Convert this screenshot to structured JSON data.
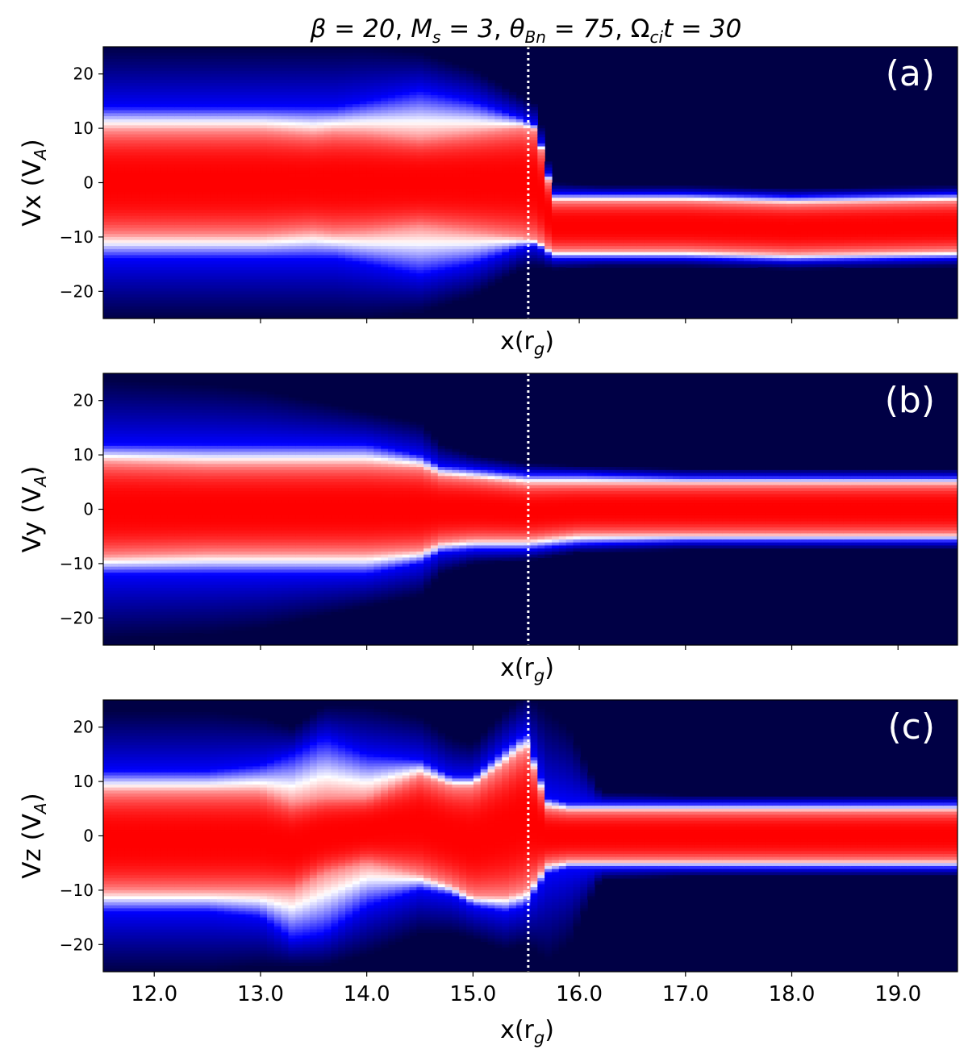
{
  "title": {
    "beta": "β = 20",
    "mach": "M",
    "mach_sub": "s",
    "mach_val": " = 3",
    "theta": "θ",
    "theta_sub": "Bn",
    "theta_val": " = 75",
    "omega": "Ω",
    "omega_sub": "ci",
    "omega_val": "t = 30",
    "sep": ", "
  },
  "xlabel_main": "x(r",
  "xlabel_sub": "g",
  "xlabel_close": ")",
  "colors": {
    "background": "#000045",
    "core": "#ff0000",
    "mid": "#ffffff",
    "wing": "#0000ff",
    "shock_line": "#ffffff"
  },
  "chart_data": [
    {
      "type": "heatmap",
      "panel_label": "(a)",
      "ylabel_main": "Vx (V",
      "ylabel_sub": "A",
      "ylabel_close": ")",
      "xlabel": "x(r_g)",
      "xlim": [
        11.52,
        19.56
      ],
      "ylim": [
        -25,
        25
      ],
      "yticks": [
        20,
        10,
        0,
        -10,
        -20
      ],
      "ytick_labels": [
        "20",
        "10",
        "0",
        "−10",
        "−20"
      ],
      "xticks": [
        12.0,
        13.0,
        14.0,
        15.0,
        16.0,
        17.0,
        18.0,
        19.0
      ],
      "xtick_labels_shown": false,
      "shock_x": 15.52,
      "profile": {
        "x": [
          11.52,
          12.5,
          13.0,
          13.5,
          13.7,
          14.0,
          14.5,
          15.0,
          15.45,
          15.6,
          15.75,
          16.2,
          17.0,
          18.0,
          19.56
        ],
        "center": [
          0,
          0,
          0,
          0,
          0,
          0,
          0,
          0,
          0,
          -0.5,
          -8,
          -8,
          -8,
          -8.5,
          -8
        ],
        "half_core": [
          9.5,
          9.5,
          9.5,
          8.8,
          9.2,
          9.0,
          8.0,
          9.0,
          10.0,
          10.0,
          4.5,
          4.5,
          4.5,
          4.5,
          4.5
        ],
        "half_mid": [
          14,
          14,
          14,
          14,
          14,
          15,
          17,
          15,
          12,
          11,
          6,
          6,
          6,
          6,
          6
        ],
        "half_wing": [
          25,
          25,
          25,
          25,
          25,
          25,
          24,
          21,
          16,
          15,
          8,
          7.5,
          7.5,
          7.5,
          7.5
        ]
      }
    },
    {
      "type": "heatmap",
      "panel_label": "(b)",
      "ylabel_main": "Vy (V",
      "ylabel_sub": "A",
      "ylabel_close": ")",
      "xlabel": "x(r_g)",
      "xlim": [
        11.52,
        19.56
      ],
      "ylim": [
        -25,
        25
      ],
      "yticks": [
        20,
        10,
        0,
        -10,
        -20
      ],
      "ytick_labels": [
        "20",
        "10",
        "0",
        "−10",
        "−20"
      ],
      "xticks": [
        12.0,
        13.0,
        14.0,
        15.0,
        16.0,
        17.0,
        18.0,
        19.0
      ],
      "xtick_labels_shown": false,
      "shock_x": 15.52,
      "profile": {
        "x": [
          11.52,
          12.5,
          13.0,
          13.5,
          14.0,
          14.5,
          14.7,
          15.0,
          15.5,
          16.0,
          17.0,
          18.0,
          19.56
        ],
        "center": [
          0,
          0,
          0,
          0,
          0,
          0,
          0,
          0,
          -0.5,
          0,
          0,
          0,
          0
        ],
        "half_core": [
          8.5,
          8.0,
          8.0,
          8.0,
          8.0,
          7.5,
          6.0,
          5.5,
          5.0,
          4.5,
          4.5,
          4.5,
          4.5
        ],
        "half_mid": [
          12,
          12,
          12,
          12,
          12,
          10,
          8,
          7.5,
          7.0,
          6.5,
          6,
          6,
          6
        ],
        "half_wing": [
          24,
          23,
          22,
          20,
          18,
          16,
          12,
          10,
          9,
          8,
          7.5,
          7.5,
          7.5
        ]
      }
    },
    {
      "type": "heatmap",
      "panel_label": "(c)",
      "ylabel_main": "Vz (V",
      "ylabel_sub": "A",
      "ylabel_close": ")",
      "xlabel": "x(r_g)",
      "xlim": [
        11.52,
        19.56
      ],
      "ylim": [
        -25,
        25
      ],
      "yticks": [
        20,
        10,
        0,
        -10,
        -20
      ],
      "ytick_labels": [
        "20",
        "10",
        "0",
        "−10",
        "−20"
      ],
      "xticks": [
        12.0,
        13.0,
        14.0,
        15.0,
        16.0,
        17.0,
        18.0,
        19.0
      ],
      "xtick_labels_shown": true,
      "xtick_labels": [
        "12.0",
        "13.0",
        "14.0",
        "15.0",
        "16.0",
        "17.0",
        "18.0",
        "19.0"
      ],
      "shock_x": 15.52,
      "profile": {
        "x": [
          11.52,
          12.5,
          13.0,
          13.3,
          13.6,
          14.0,
          14.5,
          14.8,
          15.0,
          15.3,
          15.5,
          15.7,
          15.9,
          16.2,
          17.0,
          18.0,
          19.56
        ],
        "center": [
          -1,
          -1,
          -1,
          -2,
          0,
          1,
          2,
          0,
          -1,
          1,
          3,
          0,
          0,
          0,
          0,
          0,
          0
        ],
        "half_core": [
          9,
          9,
          9,
          8,
          7,
          6,
          9,
          9,
          10,
          12,
          13,
          5,
          4.5,
          4.5,
          4.5,
          4.5,
          4.5
        ],
        "half_mid": [
          13,
          13,
          14,
          17,
          18,
          14,
          12,
          11,
          12,
          15,
          16,
          7,
          6,
          6,
          6,
          6,
          6
        ],
        "half_wing": [
          24,
          24,
          23,
          22,
          24,
          23,
          20,
          18,
          18,
          22,
          23,
          23,
          20,
          8,
          7.5,
          7.5,
          7.5
        ]
      }
    }
  ]
}
